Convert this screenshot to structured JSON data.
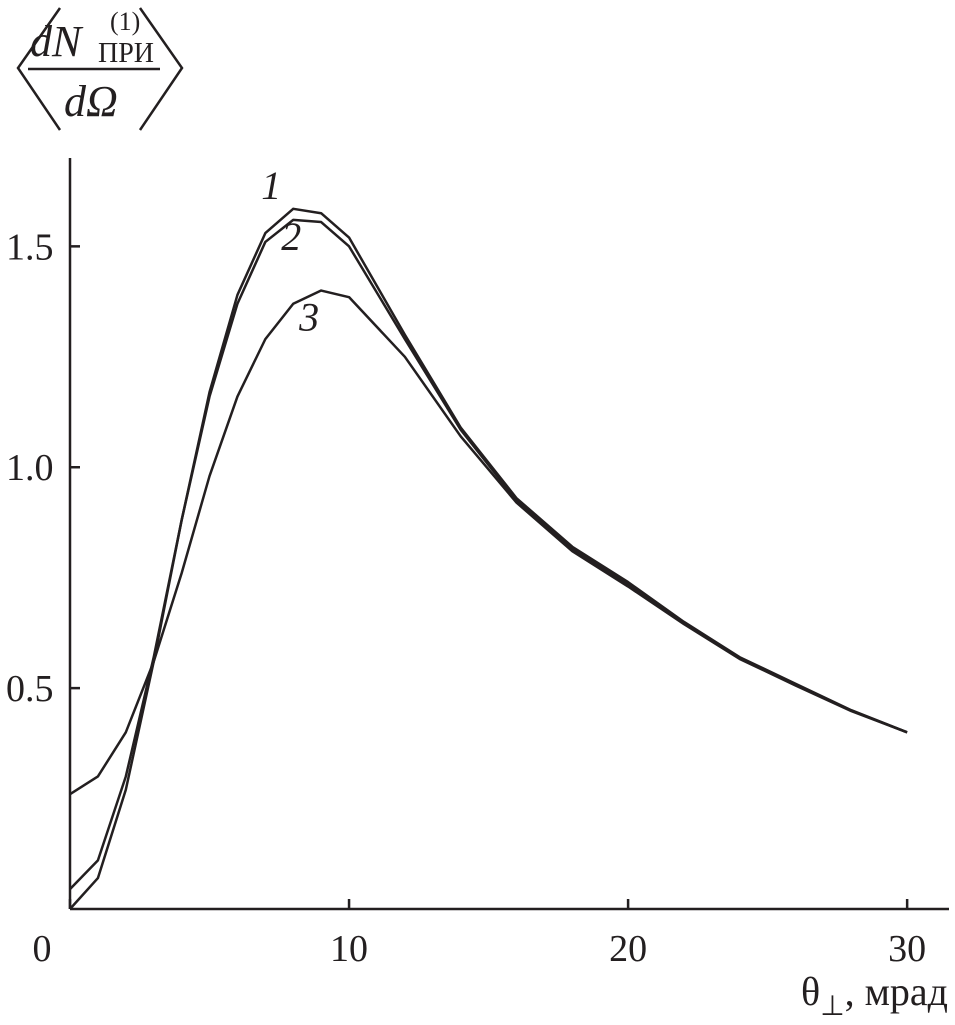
{
  "chart_data": {
    "type": "line",
    "ylabel": {
      "numerator": "dN",
      "superscript": "(1)",
      "subscript": "ПРИ",
      "denominator": "dΩ"
    },
    "xlabel": {
      "symbol": "θ",
      "subscript": "⊥",
      "unit": ", мрад"
    },
    "x": [
      0,
      1,
      2,
      3,
      4,
      5,
      6,
      7,
      8,
      9,
      10,
      12,
      14,
      16,
      18,
      20,
      22,
      24,
      26,
      28,
      30
    ],
    "series": [
      {
        "name": "1",
        "color": "#231f20",
        "values": [
          0,
          0.07,
          0.27,
          0.56,
          0.88,
          1.17,
          1.39,
          1.53,
          1.585,
          1.575,
          1.52,
          1.3,
          1.09,
          0.93,
          0.82,
          0.74,
          0.65,
          0.57,
          0.51,
          0.45,
          0.4
        ]
      },
      {
        "name": "2",
        "color": "#231f20",
        "values": [
          0.045,
          0.11,
          0.3,
          0.57,
          0.88,
          1.16,
          1.37,
          1.51,
          1.56,
          1.555,
          1.5,
          1.29,
          1.085,
          0.925,
          0.815,
          0.735,
          0.648,
          0.568,
          0.508,
          0.449,
          0.4
        ]
      },
      {
        "name": "3",
        "color": "#231f20",
        "values": [
          0.26,
          0.3,
          0.4,
          0.56,
          0.76,
          0.98,
          1.16,
          1.29,
          1.37,
          1.4,
          1.385,
          1.25,
          1.07,
          0.92,
          0.81,
          0.73,
          0.645,
          0.566,
          0.506,
          0.448,
          0.4
        ]
      }
    ],
    "xlim": [
      0,
      31.5
    ],
    "ylim": [
      0,
      1.7
    ],
    "xticks": [
      0,
      10,
      20,
      30
    ],
    "yticks": [
      0.5,
      {
        "value": 1,
        "label": "1.0"
      },
      {
        "value": 1.5,
        "label": "1.5"
      }
    ]
  }
}
